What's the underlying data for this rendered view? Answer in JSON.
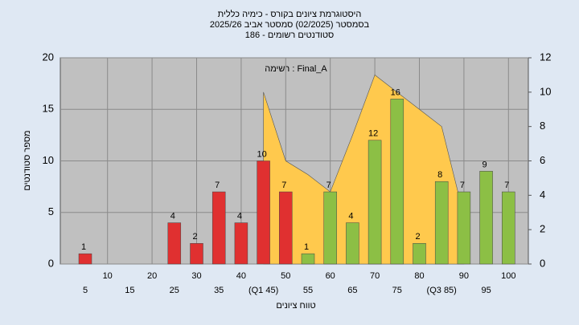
{
  "chart_data": {
    "type": "bar",
    "title": "היסטוגרמת ציונים בקורס - כימיה כללית",
    "subtitle": "בסמסטר  (02/2025)  סמסטר אביב 2025/26",
    "subtitle2": "סטודנטים רשומים - 186",
    "annotation": "רשימה : Final_A",
    "y_label": "מספר סטודנטים",
    "x_label": "טווח ציונים",
    "categories": [
      "5",
      "10",
      "15",
      "20",
      "25",
      "30",
      "35",
      "40",
      "(Q1 45)",
      "50",
      "55",
      "60",
      "65",
      "70",
      "75",
      "80",
      "(Q3 85)",
      "90",
      "95",
      "100"
    ],
    "series": [
      {
        "type": "bar",
        "values": [
          1,
          0,
          0,
          0,
          4,
          2,
          7,
          4,
          10,
          7,
          1,
          7,
          4,
          12,
          16,
          2,
          8,
          7,
          9,
          7
        ],
        "colors": [
          "#e03030",
          "#e03030",
          "#e03030",
          "#e03030",
          "#e03030",
          "#e03030",
          "#e03030",
          "#e03030",
          "#e03030",
          "#e03030",
          "#8cbf45",
          "#8cbf45",
          "#8cbf45",
          "#8cbf45",
          "#8cbf45",
          "#8cbf45",
          "#8cbf45",
          "#8cbf45",
          "#8cbf45",
          "#8cbf45"
        ]
      },
      {
        "type": "area",
        "axis": "y2",
        "color": "#ffc94d",
        "values": [
          null,
          null,
          null,
          null,
          null,
          null,
          null,
          null,
          10,
          6,
          5.2,
          4.2,
          7.5,
          11,
          10,
          9,
          8,
          2.8,
          null,
          null
        ]
      }
    ],
    "ylim": [
      0,
      20
    ],
    "yticks": [
      0,
      5,
      10,
      15,
      20
    ],
    "y2lim": [
      0,
      12
    ],
    "y2ticks": [
      0,
      2,
      4,
      6,
      8,
      10,
      12
    ],
    "grid": true
  }
}
